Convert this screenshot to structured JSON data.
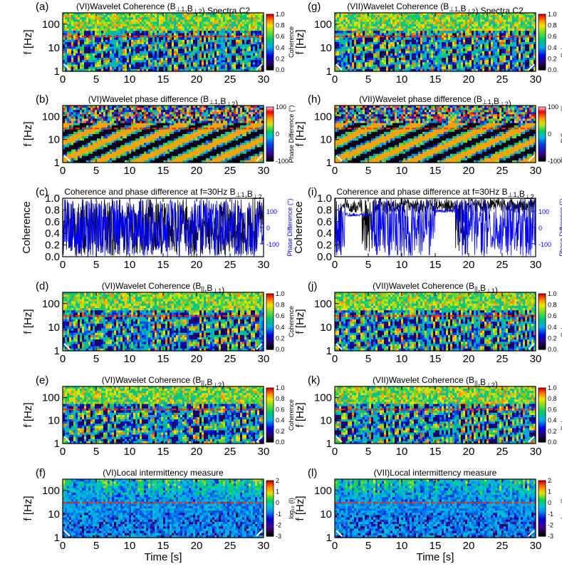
{
  "figure": {
    "x_label": "Time [s]",
    "y_label_freq": "f [Hz]",
    "y_label_coh": "Coherence",
    "x_ticks": [
      "0",
      "5",
      "10",
      "15",
      "20",
      "25",
      "30"
    ],
    "f_ticks": [
      "100",
      "10",
      "1"
    ],
    "coh_ticks": [
      "1.0",
      "0.8",
      "0.6",
      "0.4",
      "0.2",
      "0.0"
    ]
  },
  "chart_data": [
    {
      "id": "a",
      "type": "heatmap",
      "panel_label": "(a)",
      "title": "(VI)Wavelet Coherence (B⊥1,B⊥2) Spectra C2",
      "xlabel": "",
      "ylabel": "f [Hz]",
      "xlim": [
        0,
        30
      ],
      "ylim": [
        1,
        300
      ],
      "y_scale": "log",
      "cbar_label": "Coherence",
      "cbar_ticks": [
        "1.0",
        "0.8",
        "0.6",
        "0.4",
        "0.2",
        "0.0"
      ],
      "colormap": "rainbow",
      "ref_freq_hz": 30
    },
    {
      "id": "b",
      "type": "heatmap",
      "panel_label": "(b)",
      "title": "(VI)Wavelet phase difference (B⊥1,B⊥2)",
      "xlabel": "",
      "ylabel": "f [Hz]",
      "xlim": [
        0,
        30
      ],
      "ylim": [
        1,
        300
      ],
      "y_scale": "log",
      "cbar_label": "Phase Difference (°)",
      "cbar_ticks": [
        "100",
        "0",
        "-100"
      ],
      "colormap": "phase",
      "ref_freq_hz": 30
    },
    {
      "id": "c",
      "type": "line",
      "panel_label": "(c)",
      "title": "Coherence and phase difference at f=30Hz B⊥1,B⊥2",
      "xlabel": "",
      "ylabel": "Coherence",
      "y2label": "Phase Difference (°)",
      "xlim": [
        0,
        30
      ],
      "ylim": [
        0,
        1
      ],
      "y2ticks": [
        "100",
        "0",
        "-100"
      ],
      "series": [
        {
          "axis": "left",
          "color": "#000000",
          "pattern": "rapid"
        },
        {
          "axis": "right",
          "color": "#0000ff",
          "pattern": "rapid"
        }
      ]
    },
    {
      "id": "d",
      "type": "heatmap",
      "panel_label": "(d)",
      "title": "(VI)Wavelet Coherence (B∥,B⊥1)",
      "xlabel": "",
      "ylabel": "f [Hz]",
      "xlim": [
        0,
        30
      ],
      "ylim": [
        1,
        300
      ],
      "y_scale": "log",
      "cbar_label": "Coherence",
      "cbar_ticks": [
        "1.0",
        "0.8",
        "0.6",
        "0.4",
        "0.2",
        "0.0"
      ],
      "colormap": "rainbow",
      "ref_freq_hz": 30
    },
    {
      "id": "e",
      "type": "heatmap",
      "panel_label": "(e)",
      "title": "(VI)Wavelet Coherence (B∥,B⊥2)",
      "xlabel": "",
      "ylabel": "f [Hz]",
      "xlim": [
        0,
        30
      ],
      "ylim": [
        1,
        300
      ],
      "y_scale": "log",
      "cbar_label": "Coherence",
      "cbar_ticks": [
        "1.0",
        "0.8",
        "0.6",
        "0.4",
        "0.2",
        "0.0"
      ],
      "colormap": "rainbow",
      "ref_freq_hz": 30
    },
    {
      "id": "f",
      "type": "heatmap",
      "panel_label": "(f)",
      "title": "(VI)Local intermittency measure",
      "xlabel": "Time [s]",
      "ylabel": "f [Hz]",
      "xlim": [
        0,
        30
      ],
      "ylim": [
        1,
        300
      ],
      "y_scale": "log",
      "cbar_label": "log₁₀ (I)",
      "cbar_ticks": [
        "2",
        "1",
        "0",
        "-1",
        "-2",
        "-3"
      ],
      "colormap": "lim",
      "ref_freq_hz": 30
    },
    {
      "id": "g",
      "type": "heatmap",
      "panel_label": "(g)",
      "title": "(VII)Wavelet Coherence (B⊥1,B⊥2) Spectra C2",
      "xlabel": "",
      "ylabel": "f [Hz]",
      "xlim": [
        0,
        30
      ],
      "ylim": [
        1,
        300
      ],
      "y_scale": "log",
      "cbar_label": "Coherence",
      "cbar_ticks": [
        "1.0",
        "0.8",
        "0.6",
        "0.4",
        "0.2",
        "0.0"
      ],
      "colormap": "rainbow",
      "ref_freq_hz": 30
    },
    {
      "id": "h",
      "type": "heatmap",
      "panel_label": "(h)",
      "title": "(VII)Wavelet phase difference (B⊥1,B⊥2)",
      "xlabel": "",
      "ylabel": "f [Hz]",
      "xlim": [
        0,
        30
      ],
      "ylim": [
        1,
        300
      ],
      "y_scale": "log",
      "cbar_label": "Phase Difference (°)",
      "cbar_ticks": [
        "100",
        "0",
        "-100"
      ],
      "colormap": "phase",
      "ref_freq_hz": 30
    },
    {
      "id": "i",
      "type": "line",
      "panel_label": "(i)",
      "title": "Coherence and phase difference at f=30Hz B⊥1,B⊥2",
      "xlabel": "",
      "ylabel": "Coherence",
      "y2label": "Phase Difference (°)",
      "xlim": [
        0,
        30
      ],
      "ylim": [
        0,
        1
      ],
      "y2ticks": [
        "100",
        "0",
        "-100"
      ],
      "series": [
        {
          "axis": "left",
          "color": "#000000",
          "pattern": "high"
        },
        {
          "axis": "right",
          "color": "#0000ff",
          "pattern": "plateau"
        }
      ]
    },
    {
      "id": "j",
      "type": "heatmap",
      "panel_label": "(j)",
      "title": "(VII)Wavelet Coherence (B∥,B⊥1)",
      "xlabel": "",
      "ylabel": "f [Hz]",
      "xlim": [
        0,
        30
      ],
      "ylim": [
        1,
        300
      ],
      "y_scale": "log",
      "cbar_label": "Coherence",
      "cbar_ticks": [
        "1.0",
        "0.8",
        "0.6",
        "0.4",
        "0.2",
        "0.0"
      ],
      "colormap": "rainbow",
      "ref_freq_hz": 30
    },
    {
      "id": "k",
      "type": "heatmap",
      "panel_label": "(k)",
      "title": "(VII)Wavelet Coherence (B∥,B⊥2)",
      "xlabel": "",
      "ylabel": "f [Hz]",
      "xlim": [
        0,
        30
      ],
      "ylim": [
        1,
        300
      ],
      "y_scale": "log",
      "cbar_label": "Coherence",
      "cbar_ticks": [
        "1.0",
        "0.8",
        "0.6",
        "0.4",
        "0.2",
        "0.0"
      ],
      "colormap": "rainbow",
      "ref_freq_hz": 30
    },
    {
      "id": "l",
      "type": "heatmap",
      "panel_label": "(l)",
      "title": "(VII)Local intermittency measure",
      "xlabel": "Time [s]",
      "ylabel": "f [Hz]",
      "xlim": [
        0,
        30
      ],
      "ylim": [
        1,
        300
      ],
      "y_scale": "log",
      "cbar_label": "log₁₀ (I)",
      "cbar_ticks": [
        "2",
        "1",
        "0",
        "-1",
        "-2",
        "-3"
      ],
      "colormap": "lim",
      "ref_freq_hz": 30
    }
  ]
}
